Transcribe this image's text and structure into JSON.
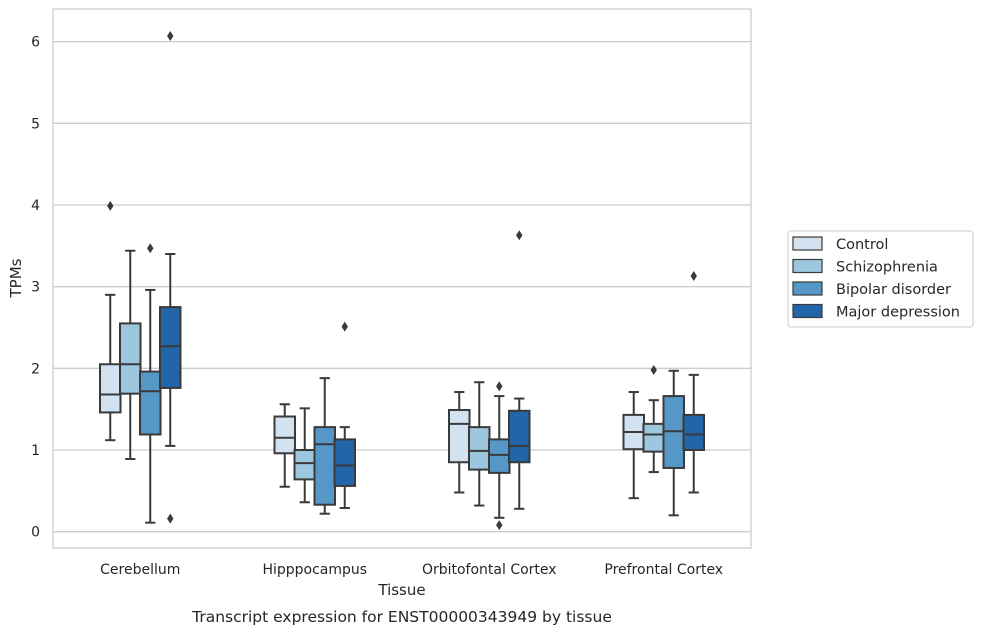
{
  "chart_data": {
    "type": "boxplot",
    "caption": "Transcript expression for ENST00000343949 by tissue",
    "xlabel": "Tissue",
    "ylabel": "TPMs",
    "ylim": [
      -0.2,
      6.4
    ],
    "yticks": [
      0,
      1,
      2,
      3,
      4,
      5,
      6
    ],
    "grid": "horizontal",
    "legend_position": "right",
    "categories": [
      "Cerebellum",
      "Hipppocampus",
      "Orbitofontal Cortex",
      "Prefrontal Cortex"
    ],
    "series": [
      {
        "name": "Control",
        "color": "#d2e2f1",
        "boxes": [
          {
            "whisker_low": 1.12,
            "q1": 1.46,
            "median": 1.68,
            "q3": 2.05,
            "whisker_high": 2.9,
            "outliers": [
              3.99
            ]
          },
          {
            "whisker_low": 0.55,
            "q1": 0.96,
            "median": 1.15,
            "q3": 1.41,
            "whisker_high": 1.56,
            "outliers": []
          },
          {
            "whisker_low": 0.48,
            "q1": 0.85,
            "median": 1.32,
            "q3": 1.49,
            "whisker_high": 1.71,
            "outliers": []
          },
          {
            "whisker_low": 0.41,
            "q1": 1.01,
            "median": 1.22,
            "q3": 1.43,
            "whisker_high": 1.71,
            "outliers": []
          }
        ]
      },
      {
        "name": "Schizophrenia",
        "color": "#9dc6df",
        "boxes": [
          {
            "whisker_low": 0.89,
            "q1": 1.69,
            "median": 2.05,
            "q3": 2.55,
            "whisker_high": 3.44,
            "outliers": []
          },
          {
            "whisker_low": 0.36,
            "q1": 0.64,
            "median": 0.84,
            "q3": 1.0,
            "whisker_high": 1.51,
            "outliers": []
          },
          {
            "whisker_low": 0.32,
            "q1": 0.76,
            "median": 0.99,
            "q3": 1.28,
            "whisker_high": 1.83,
            "outliers": []
          },
          {
            "whisker_low": 0.73,
            "q1": 0.98,
            "median": 1.19,
            "q3": 1.32,
            "whisker_high": 1.61,
            "outliers": [
              1.98
            ]
          }
        ]
      },
      {
        "name": "Bipolar disorder",
        "color": "#5598c8",
        "boxes": [
          {
            "whisker_low": 0.11,
            "q1": 1.19,
            "median": 1.72,
            "q3": 1.96,
            "whisker_high": 2.96,
            "outliers": [
              3.47
            ]
          },
          {
            "whisker_low": 0.22,
            "q1": 0.33,
            "median": 1.07,
            "q3": 1.28,
            "whisker_high": 1.88,
            "outliers": []
          },
          {
            "whisker_low": 0.17,
            "q1": 0.72,
            "median": 0.94,
            "q3": 1.13,
            "whisker_high": 1.66,
            "outliers": [
              0.08,
              1.78
            ]
          },
          {
            "whisker_low": 0.2,
            "q1": 0.78,
            "median": 1.23,
            "q3": 1.66,
            "whisker_high": 1.97,
            "outliers": []
          }
        ]
      },
      {
        "name": "Major depression",
        "color": "#2265a8",
        "boxes": [
          {
            "whisker_low": 1.05,
            "q1": 1.76,
            "median": 2.27,
            "q3": 2.75,
            "whisker_high": 3.4,
            "outliers": [
              0.16,
              6.07
            ]
          },
          {
            "whisker_low": 0.29,
            "q1": 0.56,
            "median": 0.81,
            "q3": 1.13,
            "whisker_high": 1.28,
            "outliers": [
              2.51
            ]
          },
          {
            "whisker_low": 0.28,
            "q1": 0.85,
            "median": 1.05,
            "q3": 1.48,
            "whisker_high": 1.63,
            "outliers": [
              3.63
            ]
          },
          {
            "whisker_low": 0.48,
            "q1": 1.0,
            "median": 1.19,
            "q3": 1.43,
            "whisker_high": 1.92,
            "outliers": [
              3.13
            ]
          }
        ]
      }
    ]
  }
}
